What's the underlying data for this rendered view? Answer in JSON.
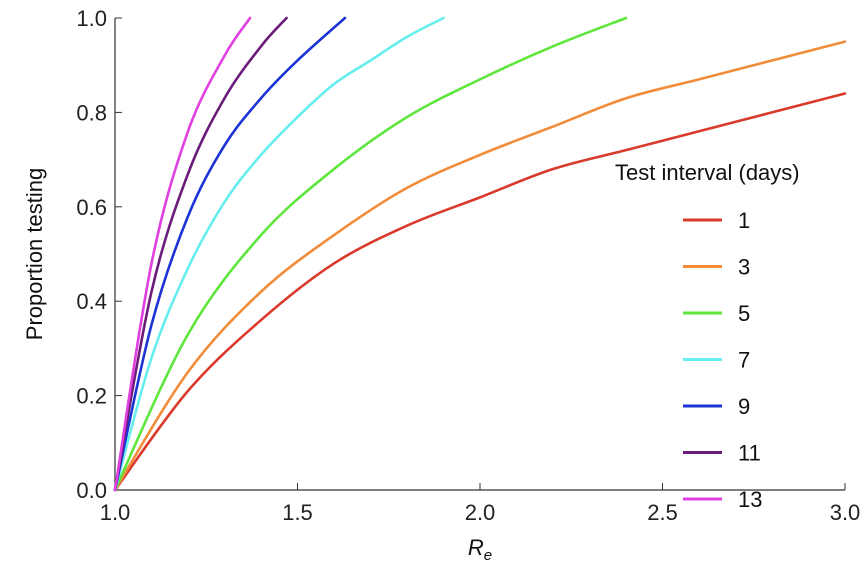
{
  "chart_data": {
    "type": "line",
    "title": "",
    "xlabel": "R",
    "xlabel_subscript": "e",
    "ylabel": "Proportion testing",
    "xlim": [
      1.0,
      3.0
    ],
    "ylim": [
      0.0,
      1.0
    ],
    "x_ticks": [
      "1.0",
      "1.5",
      "2.0",
      "2.5",
      "3.0"
    ],
    "y_ticks": [
      "0.0",
      "0.2",
      "0.4",
      "0.6",
      "0.8",
      "1.0"
    ],
    "grid": false,
    "legend": {
      "title": "Test interval (days)",
      "placement": "right"
    },
    "series": [
      {
        "name": "1",
        "color": "#d93a2b",
        "x": [
          1.0,
          1.2,
          1.4,
          1.6,
          1.8,
          2.0,
          2.2,
          2.4,
          2.6,
          2.8,
          3.0
        ],
        "y": [
          0.0,
          0.21,
          0.36,
          0.48,
          0.56,
          0.62,
          0.68,
          0.72,
          0.76,
          0.8,
          0.84
        ]
      },
      {
        "name": "3",
        "color": "#f08c3a",
        "x": [
          1.0,
          1.2,
          1.4,
          1.6,
          1.8,
          2.0,
          2.2,
          2.4,
          2.6,
          2.8,
          3.0
        ],
        "y": [
          0.0,
          0.25,
          0.42,
          0.54,
          0.64,
          0.71,
          0.77,
          0.83,
          0.87,
          0.91,
          0.95
        ]
      },
      {
        "name": "5",
        "color": "#5fe63c",
        "x": [
          1.0,
          1.2,
          1.4,
          1.6,
          1.8,
          2.0,
          2.2,
          2.4
        ],
        "y": [
          0.0,
          0.33,
          0.54,
          0.68,
          0.79,
          0.87,
          0.94,
          1.0
        ]
      },
      {
        "name": "7",
        "color": "#66eeee",
        "x": [
          1.0,
          1.1,
          1.2,
          1.3,
          1.4,
          1.5,
          1.6,
          1.7,
          1.8,
          1.9
        ],
        "y": [
          0.0,
          0.28,
          0.47,
          0.61,
          0.71,
          0.79,
          0.86,
          0.91,
          0.96,
          1.0
        ]
      },
      {
        "name": "9",
        "color": "#1c33d6",
        "x": [
          1.0,
          1.1,
          1.2,
          1.3,
          1.4,
          1.5,
          1.63
        ],
        "y": [
          0.0,
          0.35,
          0.58,
          0.73,
          0.83,
          0.91,
          1.0
        ]
      },
      {
        "name": "11",
        "color": "#6b1c7a",
        "x": [
          1.0,
          1.1,
          1.2,
          1.3,
          1.4,
          1.47
        ],
        "y": [
          0.0,
          0.42,
          0.67,
          0.83,
          0.94,
          1.0
        ]
      },
      {
        "name": "13",
        "color": "#e040e0",
        "x": [
          1.0,
          1.1,
          1.2,
          1.3,
          1.37
        ],
        "y": [
          0.0,
          0.48,
          0.76,
          0.92,
          1.0
        ]
      }
    ]
  }
}
